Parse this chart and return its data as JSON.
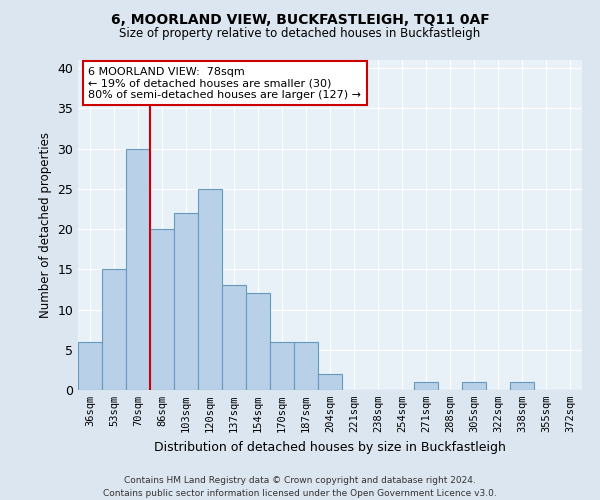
{
  "title1": "6, MOORLAND VIEW, BUCKFASTLEIGH, TQ11 0AF",
  "title2": "Size of property relative to detached houses in Buckfastleigh",
  "xlabel": "Distribution of detached houses by size in Buckfastleigh",
  "ylabel": "Number of detached properties",
  "categories": [
    "36sqm",
    "53sqm",
    "70sqm",
    "86sqm",
    "103sqm",
    "120sqm",
    "137sqm",
    "154sqm",
    "170sqm",
    "187sqm",
    "204sqm",
    "221sqm",
    "238sqm",
    "254sqm",
    "271sqm",
    "288sqm",
    "305sqm",
    "322sqm",
    "338sqm",
    "355sqm",
    "372sqm"
  ],
  "values": [
    6,
    15,
    30,
    20,
    22,
    25,
    13,
    12,
    6,
    6,
    2,
    0,
    0,
    0,
    1,
    0,
    1,
    0,
    1,
    0,
    0
  ],
  "bar_color": "#b8d0e8",
  "bar_edge_color": "#6699bb",
  "vline_x": 2.5,
  "vline_color": "#cc0000",
  "annotation_text": "6 MOORLAND VIEW:  78sqm\n← 19% of detached houses are smaller (30)\n80% of semi-detached houses are larger (127) →",
  "annotation_box_color": "#ffffff",
  "annotation_box_edge_color": "#cc0000",
  "ylim": [
    0,
    41
  ],
  "yticks": [
    0,
    5,
    10,
    15,
    20,
    25,
    30,
    35,
    40
  ],
  "footnote": "Contains HM Land Registry data © Crown copyright and database right 2024.\nContains public sector information licensed under the Open Government Licence v3.0.",
  "bg_color": "#dce6f0",
  "plot_bg_color": "#e8f0f8"
}
